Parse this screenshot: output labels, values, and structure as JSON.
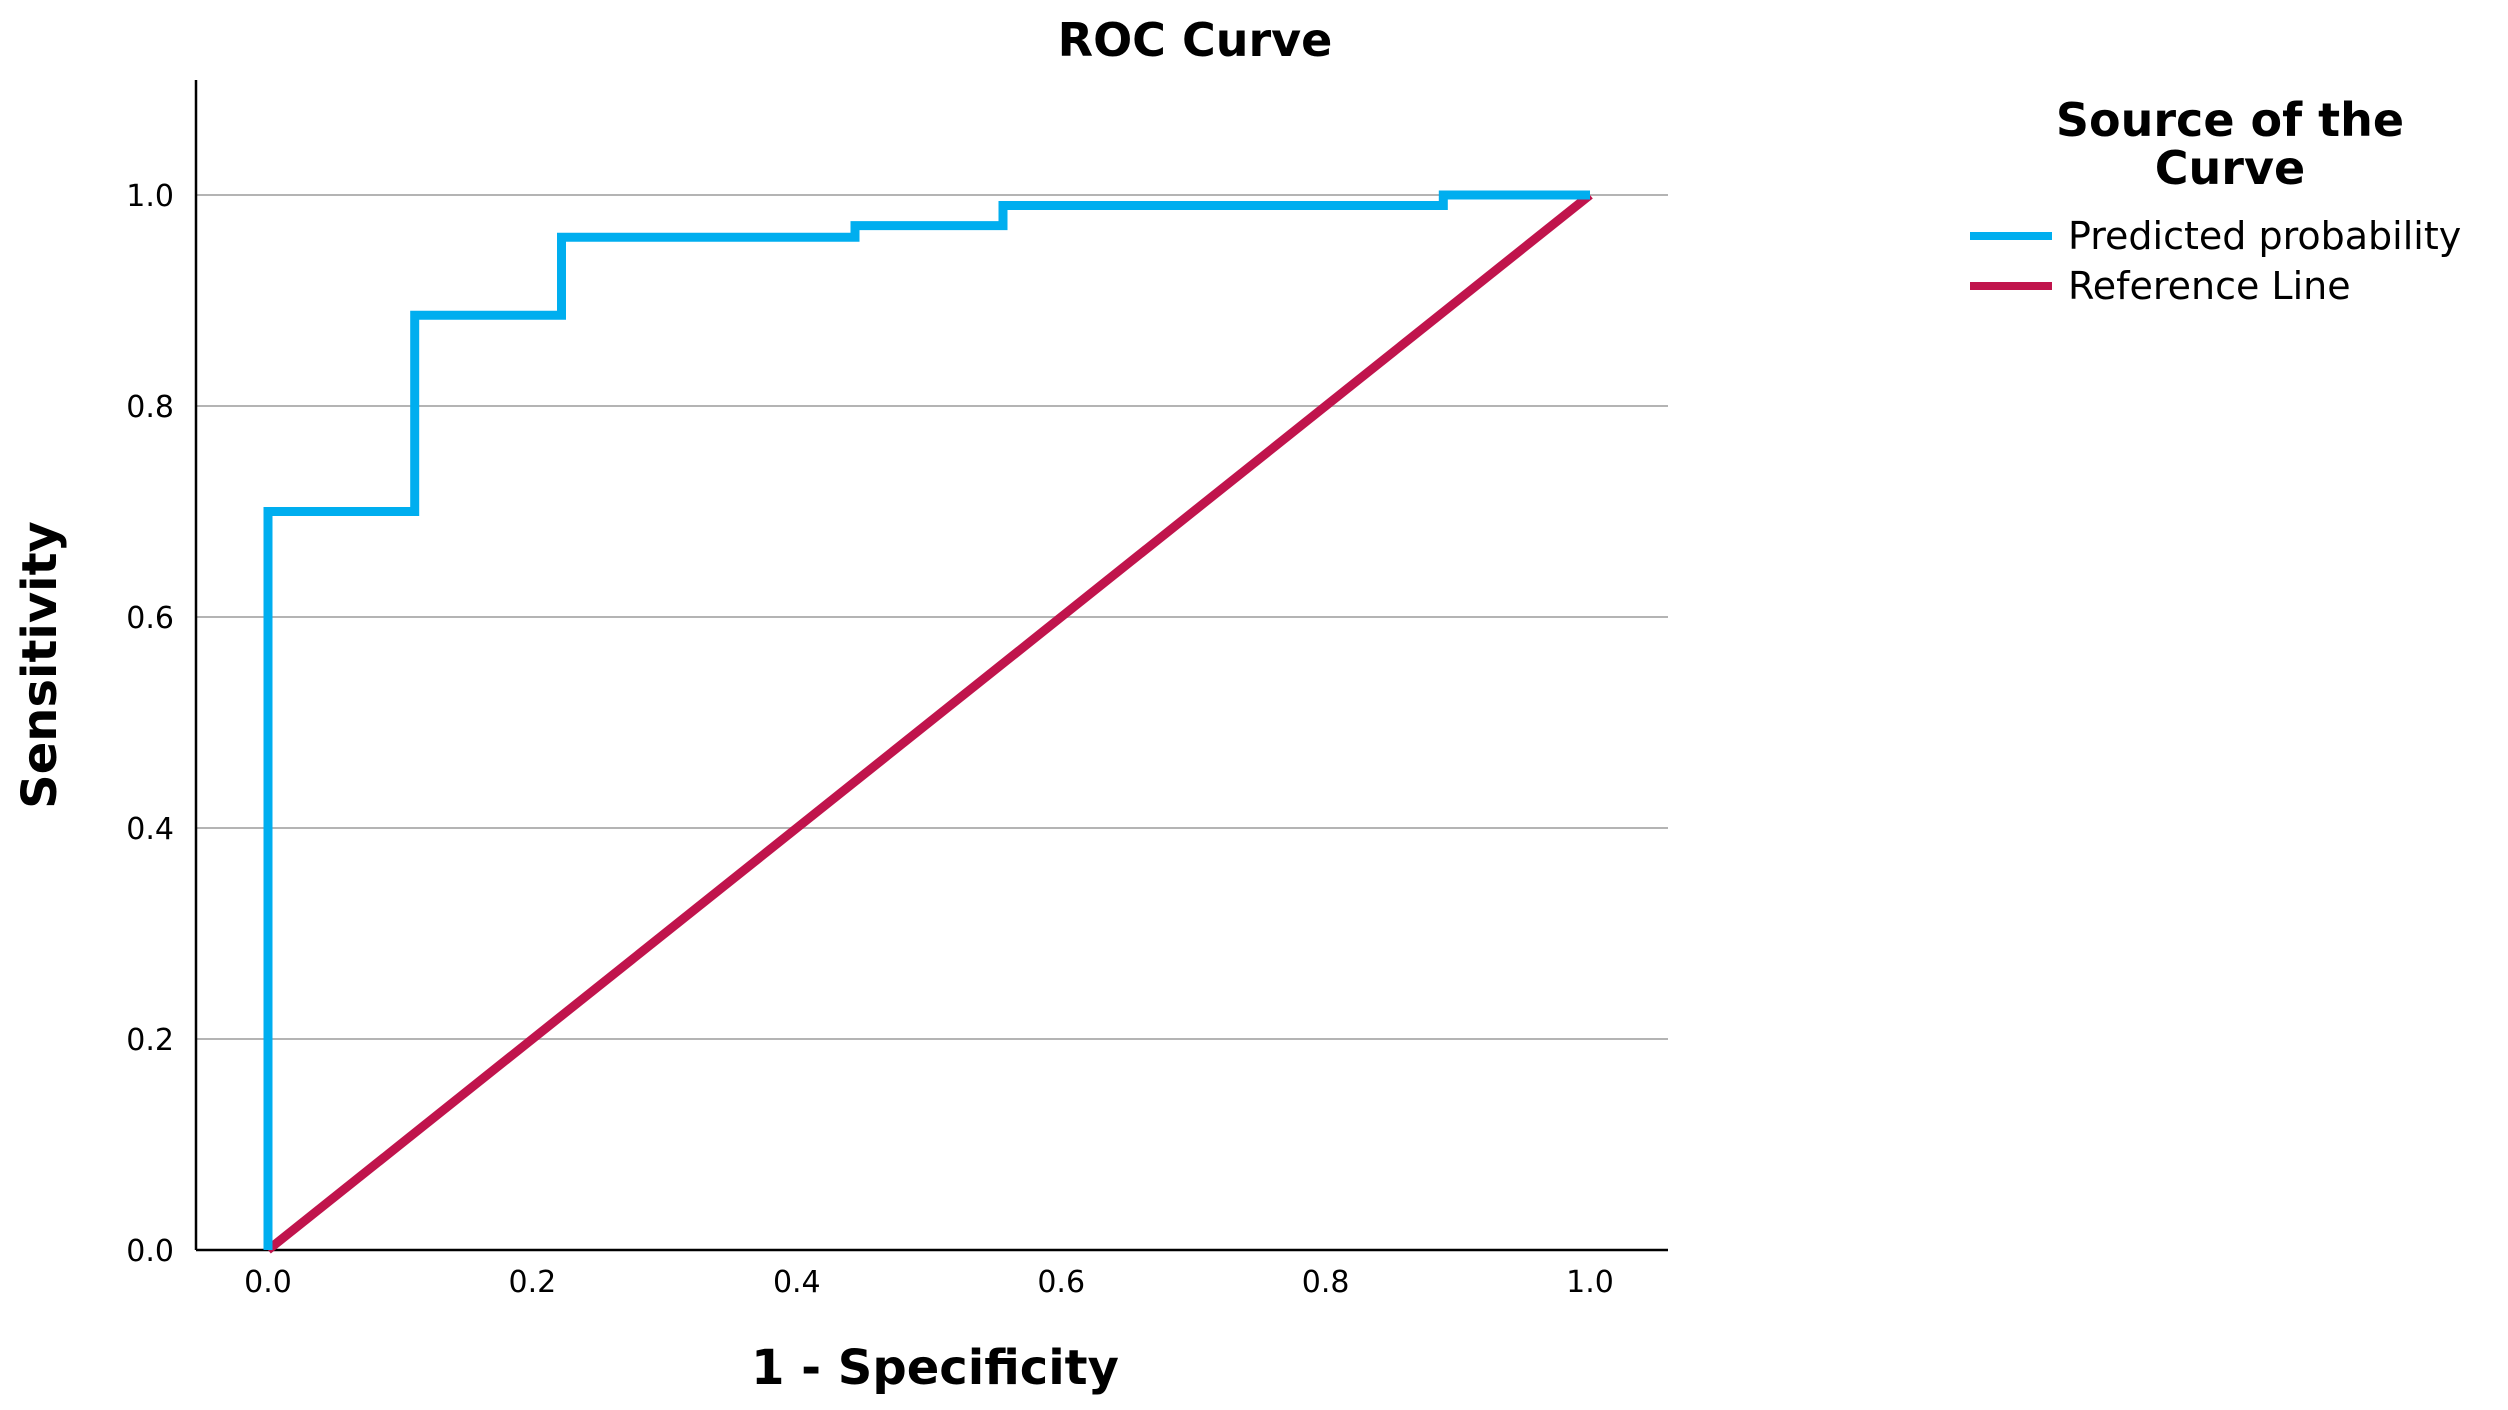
{
  "chart_data": {
    "type": "line",
    "title": "ROC Curve",
    "xlabel": "1 - Specificity",
    "ylabel": "Sensitivity",
    "xlim": [
      0,
      1
    ],
    "ylim": [
      0,
      1
    ],
    "x_ticks": [
      "0.0",
      "0.2",
      "0.4",
      "0.6",
      "0.8",
      "1.0"
    ],
    "y_ticks": [
      "0.0",
      "0.2",
      "0.4",
      "0.6",
      "0.8",
      "1.0"
    ],
    "grid": "horizontal",
    "legend": {
      "title": "Source of the Curve",
      "placement": "right"
    },
    "series": [
      {
        "name": "Predicted probability",
        "color": "#00AEEF",
        "step": true,
        "points": [
          [
            0.0,
            0.0
          ],
          [
            0.0,
            0.7
          ],
          [
            0.111,
            0.7
          ],
          [
            0.111,
            0.886
          ],
          [
            0.222,
            0.886
          ],
          [
            0.222,
            0.96
          ],
          [
            0.444,
            0.96
          ],
          [
            0.444,
            0.971
          ],
          [
            0.556,
            0.971
          ],
          [
            0.556,
            0.99
          ],
          [
            0.889,
            0.99
          ],
          [
            0.889,
            1.0
          ],
          [
            1.0,
            1.0
          ]
        ]
      },
      {
        "name": "Reference Line",
        "color": "#C0144C",
        "points": [
          [
            0.0,
            0.0
          ],
          [
            1.0,
            1.0
          ]
        ]
      }
    ]
  }
}
